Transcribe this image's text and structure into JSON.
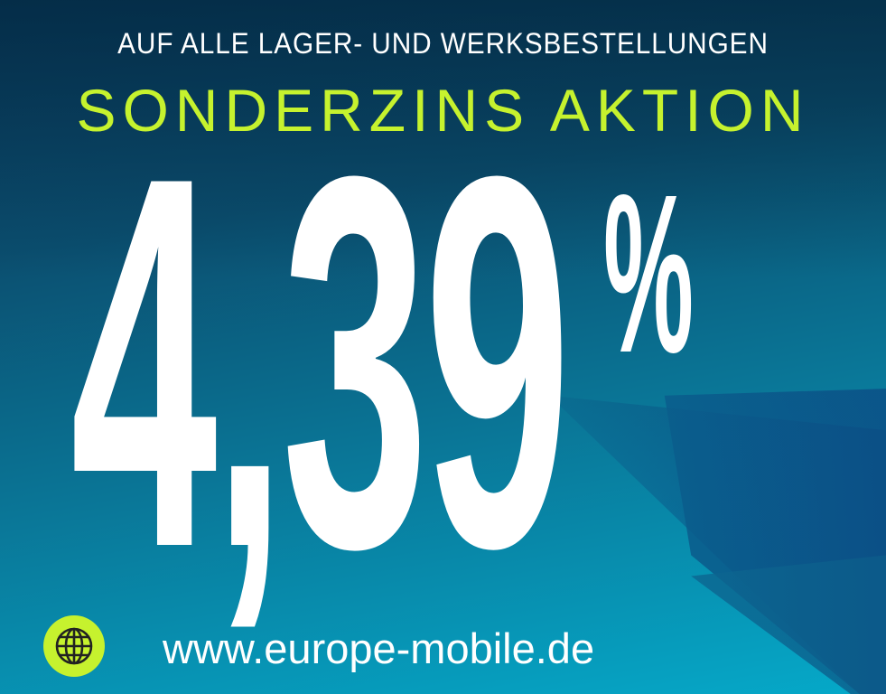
{
  "headline": "AUF ALLE LAGER- UND WERKSBESTELLUNGEN",
  "title": "SONDERZINS AKTION",
  "rate": "4,39",
  "percent_sign": "%",
  "website": "www.europe-mobile.de",
  "icon": "globe-icon",
  "colors": {
    "accent": "#c6f22e",
    "text": "#ffffff",
    "background_top": "#0a3f63",
    "background_bottom": "#05a9c9"
  }
}
